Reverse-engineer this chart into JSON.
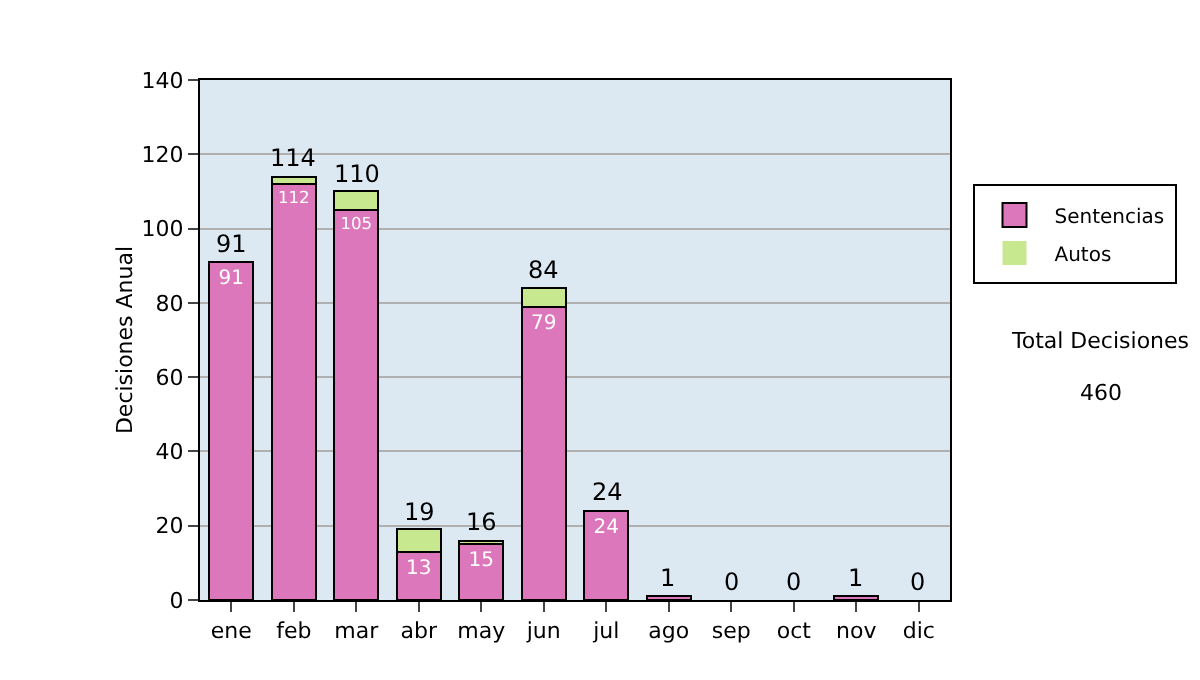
{
  "chart_data": {
    "type": "bar",
    "stacked": true,
    "ylabel": "Decisiones Anual",
    "categories": [
      "ene",
      "feb",
      "mar",
      "abr",
      "may",
      "jun",
      "jul",
      "ago",
      "sep",
      "oct",
      "nov",
      "dic"
    ],
    "series": [
      {
        "name": "Sentencias",
        "color": "#dd77bb",
        "values": [
          91,
          112,
          105,
          13,
          15,
          79,
          24,
          1,
          0,
          0,
          1,
          0
        ],
        "value_labels": [
          "91",
          "112",
          "105",
          "13",
          "15",
          "79",
          "24",
          null,
          null,
          null,
          null,
          null
        ]
      },
      {
        "name": "Autos",
        "color": "#c8e890",
        "values": [
          0,
          2,
          5,
          6,
          1,
          5,
          0,
          0,
          0,
          0,
          0,
          0
        ]
      }
    ],
    "totals": [
      "91",
      "114",
      "110",
      "19",
      "16",
      "84",
      "24",
      "1",
      "0",
      "0",
      "1",
      "0"
    ],
    "ylim": [
      0,
      140
    ],
    "yticks": [
      0,
      20,
      40,
      60,
      80,
      100,
      120,
      140
    ],
    "grid": "y",
    "legend": "right",
    "annotations": [
      "Total Decisiones",
      "460"
    ]
  }
}
